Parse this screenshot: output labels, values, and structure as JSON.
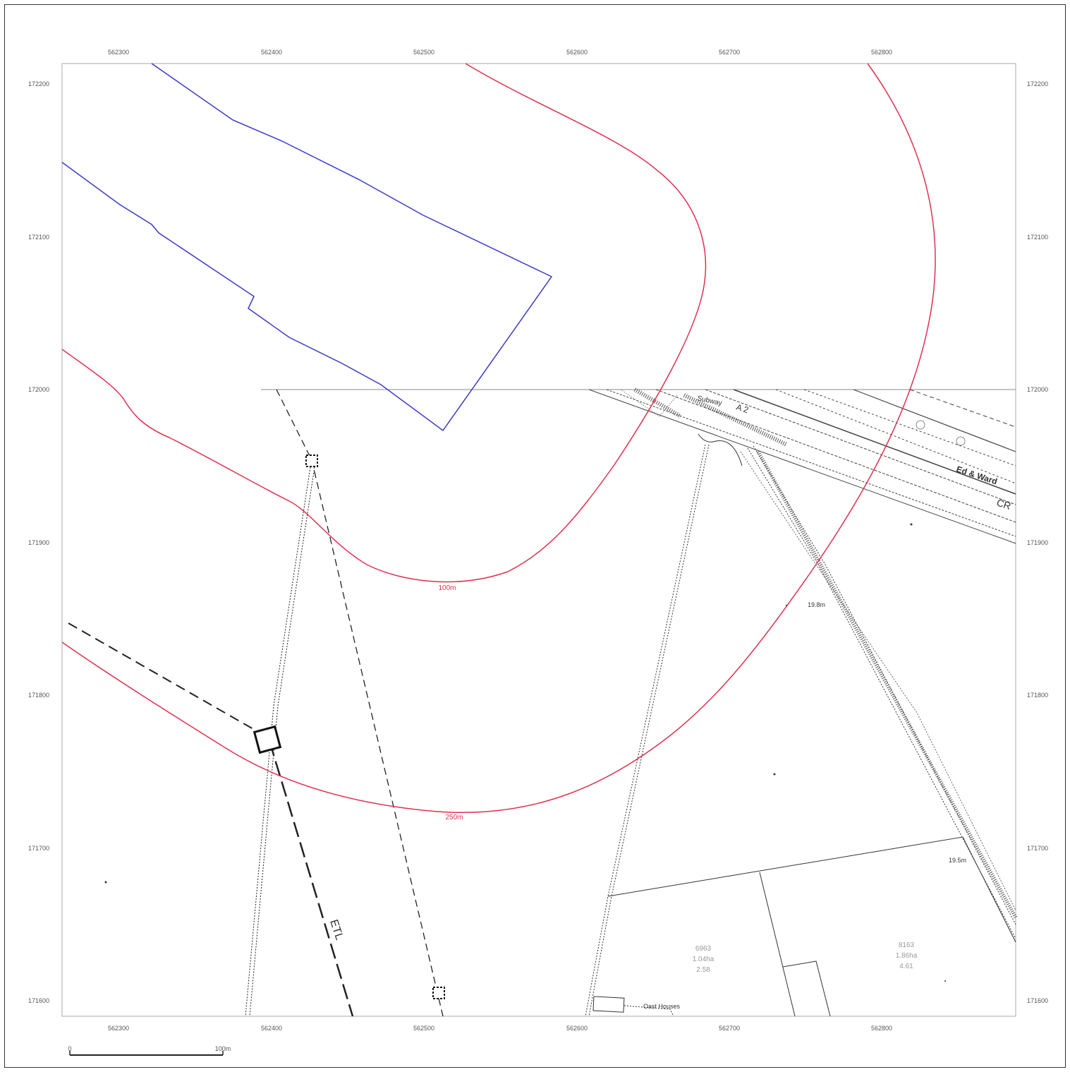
{
  "map": {
    "eastings": [
      "562300",
      "562400",
      "562500",
      "562600",
      "562700",
      "562800"
    ],
    "northings": [
      "172200",
      "172100",
      "172000",
      "171900",
      "171800",
      "171700",
      "171600"
    ],
    "buffers": [
      {
        "label": "100m",
        "color": "#e0304e"
      },
      {
        "label": "250m",
        "color": "#e0304e"
      }
    ],
    "site_boundary_color": "#3a3acc",
    "labels": {
      "subway": "Subway",
      "road": "A 2",
      "ward_boundary": "Ed & Ward",
      "cr": "CR",
      "spot_height_1": "19.8m",
      "spot_height_2": "19.5m",
      "etl": "ETL",
      "oast_houses": "Oast Houses",
      "parcel_1": [
        "6963",
        "1.04ha",
        "2.58"
      ],
      "parcel_2": [
        "8163",
        "1.86ha",
        "4.61"
      ]
    },
    "scale_bar": {
      "start": "0",
      "end": "100m"
    }
  }
}
